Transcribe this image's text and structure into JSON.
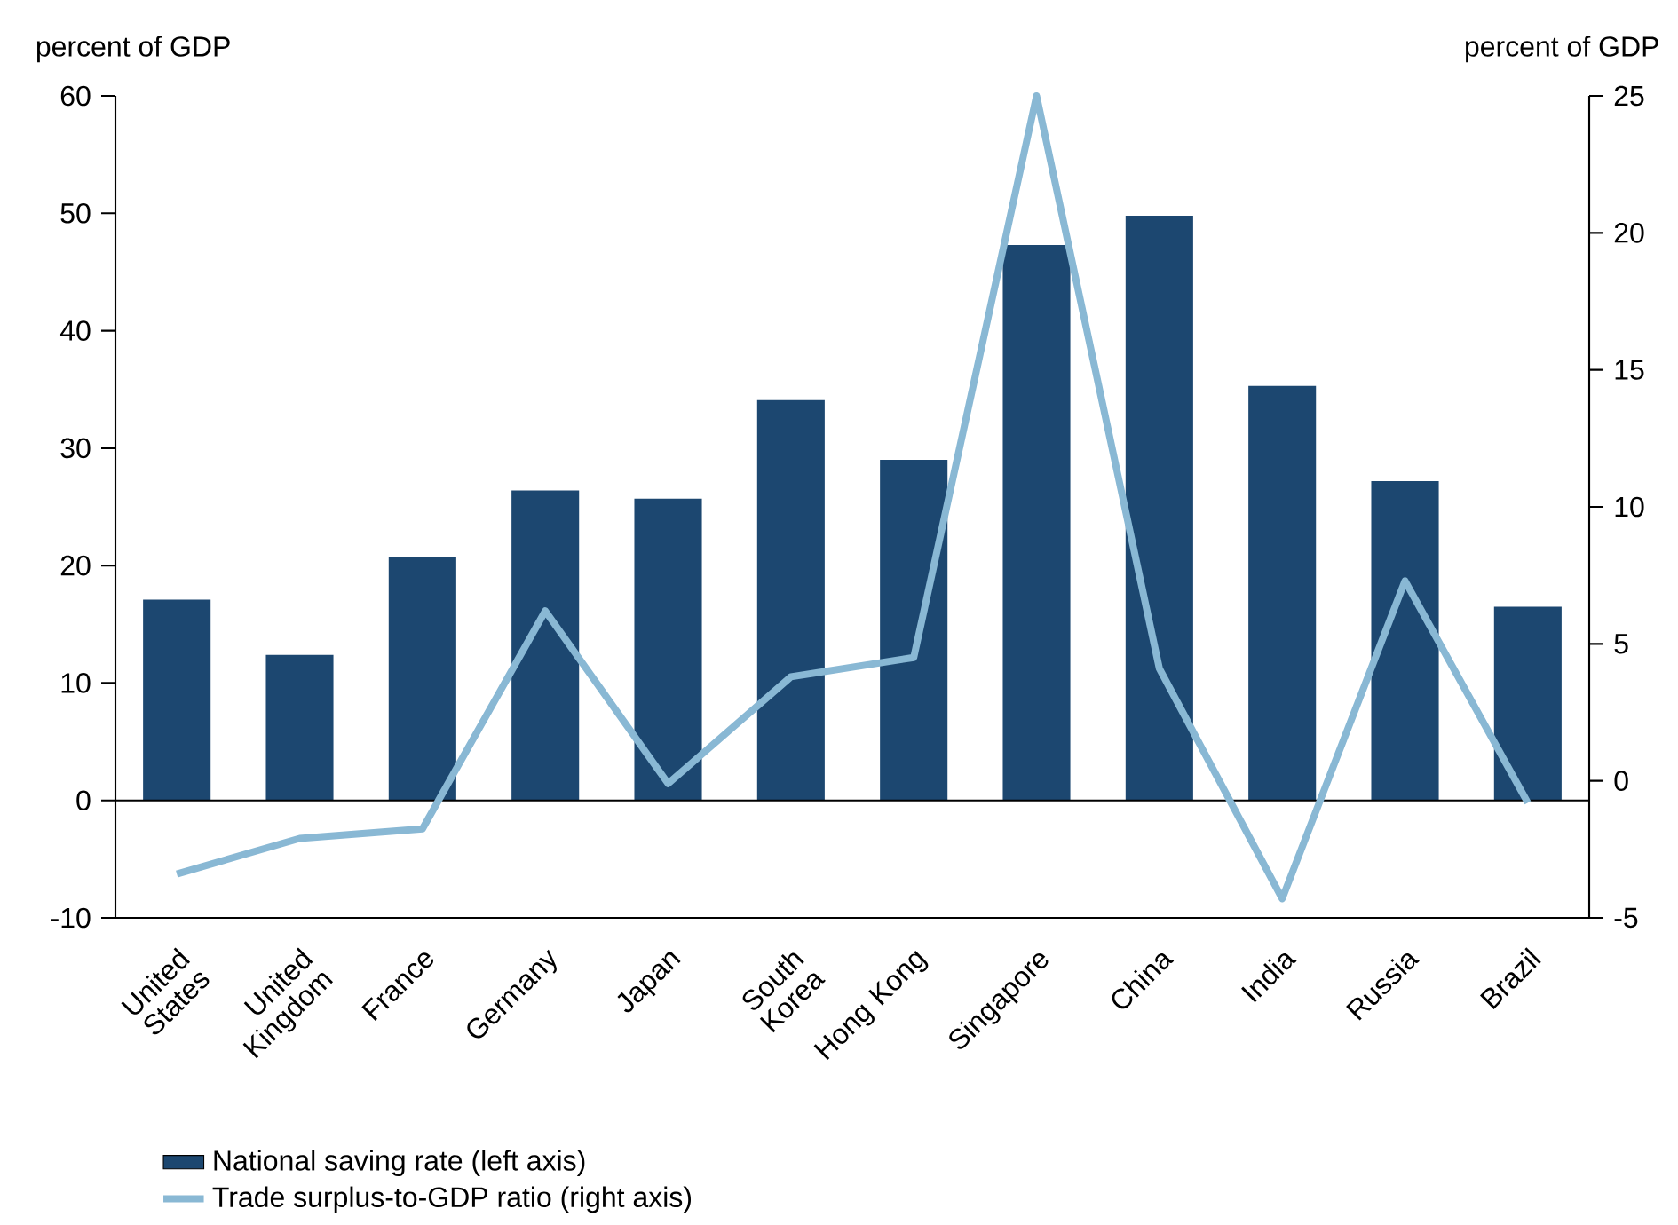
{
  "chart_data": {
    "type": "bar",
    "ylabel": "percent of GDP",
    "y2label": "percent of GDP",
    "categories": [
      "United States",
      "United Kingdom",
      "France",
      "Germany",
      "Japan",
      "South Korea",
      "Hong Kong",
      "Singapore",
      "China",
      "India",
      "Russia",
      "Brazil"
    ],
    "series": [
      {
        "name": "National saving rate (left axis)",
        "color": "#1c4770",
        "values": [
          17.1,
          12.4,
          20.7,
          26.4,
          25.7,
          34.1,
          29.0,
          47.3,
          49.8,
          35.3,
          27.2,
          16.5
        ]
      },
      {
        "name": "Trade surplus-to-GDP ratio (right axis)",
        "type": "line",
        "axis": "y2",
        "color": "#89b8d4",
        "values": [
          -3.4,
          -2.1,
          -1.75,
          6.2,
          -0.1,
          3.8,
          4.5,
          25.0,
          4.1,
          -4.3,
          7.3,
          -0.8
        ]
      }
    ],
    "ylim": [
      -10,
      60
    ],
    "yticks": [
      -10,
      0,
      10,
      20,
      30,
      40,
      50,
      60
    ],
    "y2lim": [
      -5,
      25
    ],
    "y2ticks": [
      -5,
      0,
      5,
      10,
      15,
      20,
      25
    ],
    "ref_lines": [
      {
        "axis": "y",
        "value": 0,
        "color": "#000000"
      }
    ],
    "legend": "bottom left"
  }
}
